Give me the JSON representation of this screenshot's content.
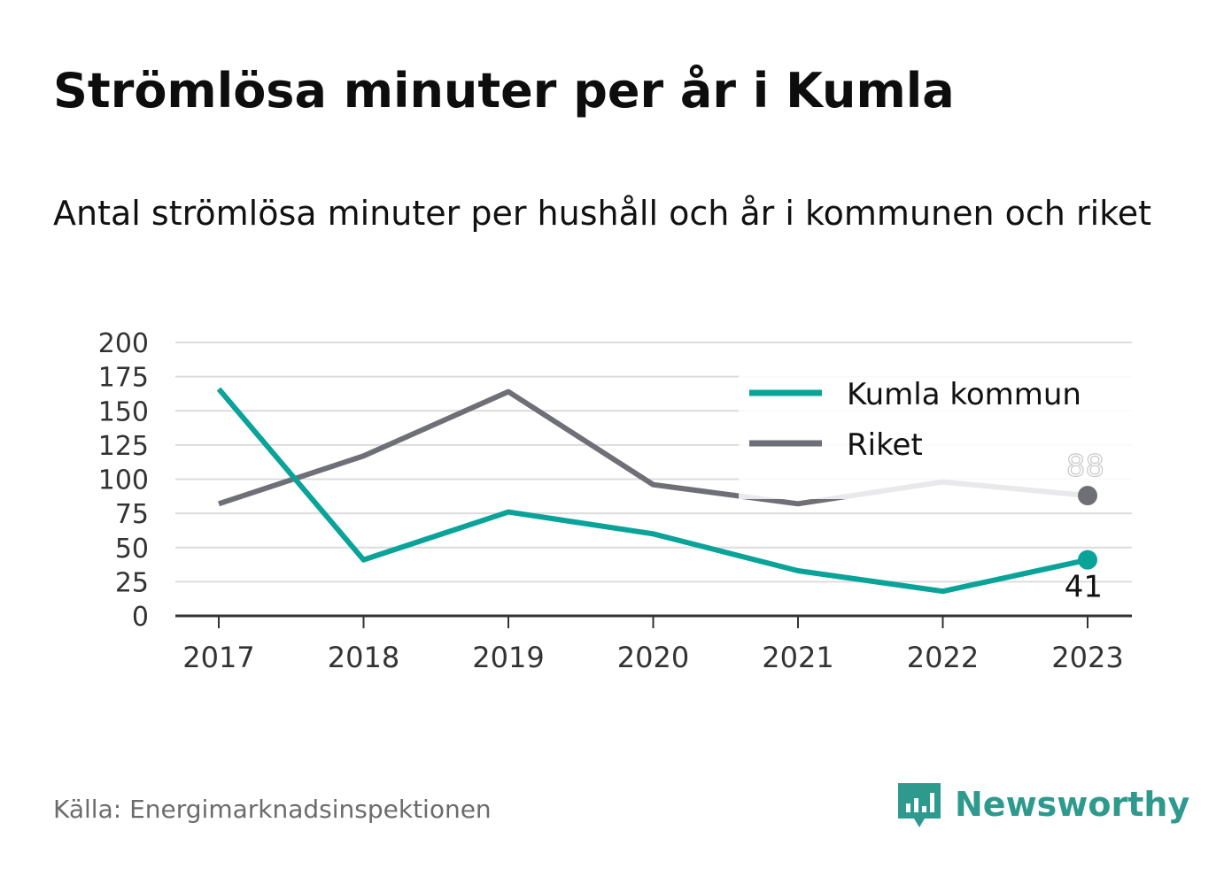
{
  "title": "Strömlösa minuter per år i Kumla",
  "subtitle": "Antal strömlösa minuter per hushåll och år i kommunen och riket",
  "source": "Källa: Energimarknadsinspektionen",
  "brand": {
    "name": "Newsworthy",
    "icon": "newsworthy-logo-icon",
    "color": "#2e9a8e"
  },
  "chart_data": {
    "type": "line",
    "categories": [
      "2017",
      "2018",
      "2019",
      "2020",
      "2021",
      "2022",
      "2023"
    ],
    "series": [
      {
        "name": "Kumla kommun",
        "color": "#0aa39a",
        "values": [
          166,
          41,
          76,
          60,
          33,
          18,
          41
        ],
        "end_label": "41"
      },
      {
        "name": "Riket",
        "color": "#6f6f77",
        "values": [
          82,
          117,
          164,
          96,
          82,
          98,
          88
        ],
        "end_label": "88"
      }
    ],
    "y_ticks": [
      "0",
      "25",
      "50",
      "75",
      "100",
      "125",
      "150",
      "175",
      "200"
    ],
    "ylim": [
      0,
      200
    ],
    "grid": true,
    "legend_position": "top-right"
  }
}
